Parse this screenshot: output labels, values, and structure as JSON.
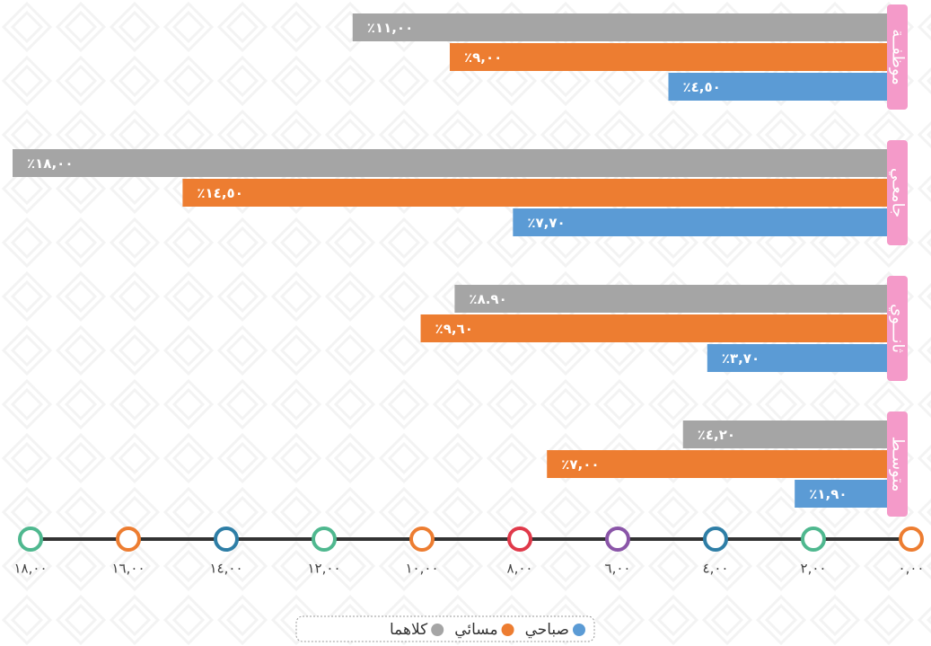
{
  "chart_data": {
    "type": "barh",
    "categories": [
      "موظفــة",
      "جامعـي",
      "ثانـــوي",
      "متوسـط"
    ],
    "series": [
      {
        "name": "كلاهما",
        "color": "#a5a5a5",
        "values": [
          11,
          18,
          8.9,
          4.2
        ],
        "value_labels": [
          "٪١١,٠٠",
          "٪١٨,٠٠",
          "٪٨.٩٠",
          "٪٤,٢٠"
        ]
      },
      {
        "name": "مسائي",
        "color": "#ed7d31",
        "values": [
          9,
          14.5,
          9.6,
          7
        ],
        "value_labels": [
          "٪٩,٠٠",
          "٪١٤,٥٠",
          "٪٩,٦٠",
          "٪٧,٠٠"
        ]
      },
      {
        "name": "صباحي",
        "color": "#5b9bd5",
        "values": [
          4.5,
          7.7,
          3.7,
          1.9
        ],
        "value_labels": [
          "٪٤,٥٠",
          "٪٧,٧٠",
          "٪٣,٧٠",
          "٪١,٩٠"
        ]
      }
    ],
    "category_color": "#f49ac9",
    "xlim": [
      0,
      18
    ],
    "xticks": [
      {
        "value": 0,
        "label": "٠,٠٠"
      },
      {
        "value": 2,
        "label": "٢,٠٠"
      },
      {
        "value": 4,
        "label": "٤,٠٠"
      },
      {
        "value": 6,
        "label": "٦,٠٠"
      },
      {
        "value": 8,
        "label": "٨,٠٠"
      },
      {
        "value": 10,
        "label": "١٠,٠٠"
      },
      {
        "value": 12,
        "label": "١٢,٠٠"
      },
      {
        "value": 14,
        "label": "١٤,٠٠"
      },
      {
        "value": 16,
        "label": "١٦,٠٠"
      },
      {
        "value": 18,
        "label": "١٨,٠٠"
      }
    ],
    "tick_colors": [
      "#ed7d31",
      "#4fb88f",
      "#2e7ea6",
      "#8a55a8",
      "#e0394a",
      "#ed7d31",
      "#4fb88f",
      "#2e7ea6",
      "#ed7d31",
      "#4fb88f"
    ],
    "x_reversed": true,
    "legend": "bottom"
  }
}
